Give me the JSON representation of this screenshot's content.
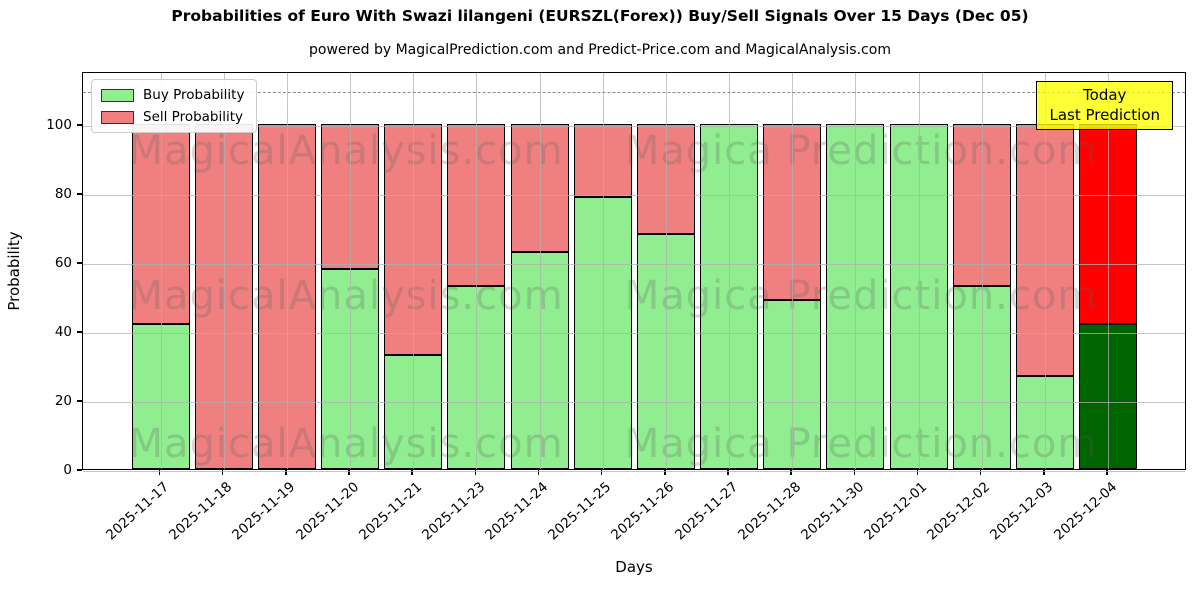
{
  "title": "Probabilities of Euro With Swazi lilangeni (EURSZL(Forex)) Buy/Sell Signals Over 15 Days (Dec 05)",
  "subtitle": "powered by MagicalPrediction.com and Predict-Price.com and MagicalAnalysis.com",
  "legend": {
    "items": [
      {
        "label": "Buy Probability",
        "color": "#90ee90"
      },
      {
        "label": "Sell Probability",
        "color": "#f08080"
      }
    ]
  },
  "annotation": {
    "line1": "Today",
    "line2": "Last Prediction",
    "bg_color": "#ffff00"
  },
  "watermarks": {
    "left": "MagicalAnalysis.com",
    "right": "Magica Prediction.com",
    "rows": 3
  },
  "chart_data": {
    "type": "bar",
    "stacked": true,
    "title": "Probabilities of Euro With Swazi lilangeni (EURSZL(Forex)) Buy/Sell Signals Over 15 Days (Dec 05)",
    "xlabel": "Days",
    "ylabel": "Probability",
    "categories": [
      "2025-11-17",
      "2025-11-18",
      "2025-11-19",
      "2025-11-20",
      "2025-11-21",
      "2025-11-23",
      "2025-11-24",
      "2025-11-25",
      "2025-11-26",
      "2025-11-27",
      "2025-11-28",
      "2025-11-30",
      "2025-12-01",
      "2025-12-02",
      "2025-12-03",
      "2025-12-04"
    ],
    "series": [
      {
        "name": "Buy Probability",
        "color": "#90ee90",
        "values": [
          42,
          0,
          0,
          58,
          33,
          53,
          63,
          79,
          68,
          100,
          49,
          100,
          100,
          53,
          27,
          42
        ]
      },
      {
        "name": "Sell Probability",
        "color": "#f08080",
        "values": [
          58,
          100,
          100,
          42,
          67,
          47,
          37,
          21,
          32,
          0,
          51,
          0,
          0,
          47,
          73,
          58
        ]
      }
    ],
    "today_bar": {
      "index": 15,
      "buy_color": "#006400",
      "sell_color": "#ff0000"
    },
    "yticks": [
      0,
      20,
      40,
      60,
      80,
      100
    ],
    "ylim": [
      0,
      115.4
    ],
    "dashed_line_y": 110,
    "grid": true,
    "grid_color": "#b0b0b0",
    "legend_position": "upper left"
  }
}
